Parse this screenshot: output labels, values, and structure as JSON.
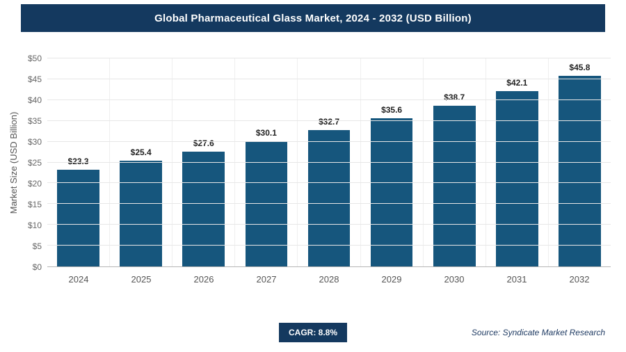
{
  "header": {
    "title": "Global Pharmaceutical Glass Market, 2024 - 2032 (USD Billion)"
  },
  "chart_data": {
    "type": "bar",
    "title": "Global Pharmaceutical Glass Market, 2024 - 2032 (USD Billion)",
    "categories": [
      "2024",
      "2025",
      "2026",
      "2027",
      "2028",
      "2029",
      "2030",
      "2031",
      "2032"
    ],
    "values": [
      23.3,
      25.4,
      27.6,
      30.1,
      32.7,
      35.6,
      38.7,
      42.1,
      45.8
    ],
    "data_labels": [
      "$23.3",
      "$25.4",
      "$27.6",
      "$30.1",
      "$32.7",
      "$35.6",
      "$38.7",
      "$42.1",
      "$45.8"
    ],
    "xlabel": "",
    "ylabel": "Market Size (USD Billion)",
    "ylim": [
      0,
      50
    ],
    "ytick_step": 5,
    "ytick_labels": [
      "$0",
      "$5",
      "$10",
      "$15",
      "$20",
      "$25",
      "$30",
      "$35",
      "$40",
      "$45",
      "$50"
    ],
    "grid": true,
    "legend": false
  },
  "footer": {
    "cagr_label": "CAGR: 8.8%",
    "source": "Source: Syndicate Market Research"
  },
  "colors": {
    "header_bg": "#14395f",
    "bar": "#16567d",
    "cagr_bg": "#14395f",
    "source_text": "#1f3b63"
  }
}
